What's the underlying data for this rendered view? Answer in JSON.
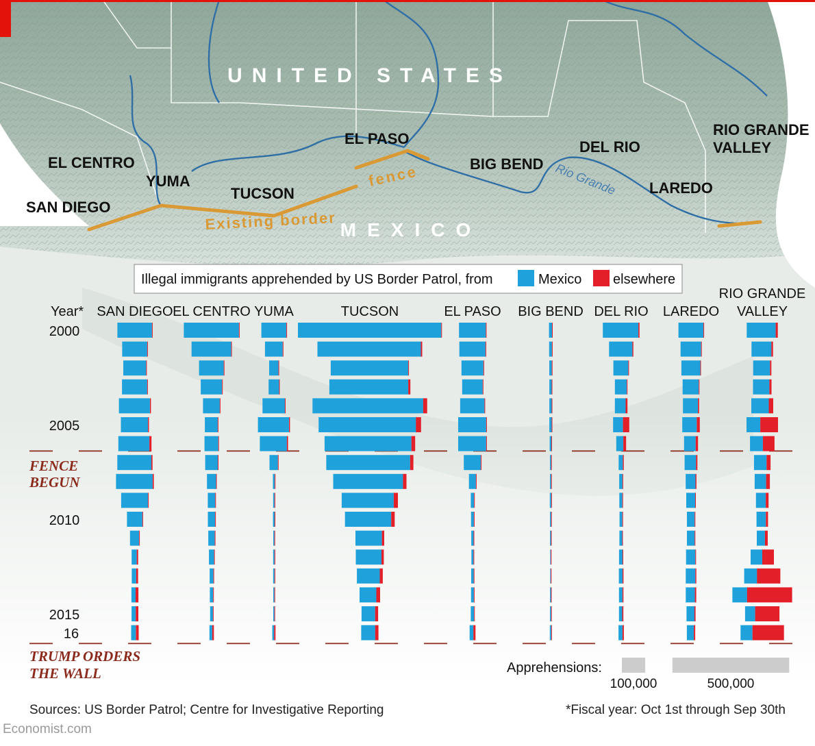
{
  "map": {
    "country_us": "UNITED STATES",
    "country_mx": "MEXICO",
    "fence_label_1": "Existing border",
    "fence_label_2": "fence",
    "river_label": "Rio Grande",
    "sectors": [
      "SAN DIEGO",
      "EL CENTRO",
      "YUMA",
      "TUCSON",
      "EL PASO",
      "BIG BEND",
      "DEL RIO",
      "LAREDO",
      "RIO GRANDE",
      "VALLEY"
    ]
  },
  "legend": {
    "title": "Illegal immigrants apprehended by US Border Patrol, from",
    "mexico_label": "Mexico",
    "elsewhere_label": "elsewhere"
  },
  "colors": {
    "mexico": "#1fa2dc",
    "elsewhere": "#e3202a",
    "annotation": "#8b2a1b",
    "fence": "#d99a35",
    "accent": "#e3120b",
    "scale": "#cccccc"
  },
  "year_header": "Year*",
  "annotations": {
    "fence_1": "FENCE",
    "fence_2": "BEGUN",
    "trump_1": "TRUMP ORDERS",
    "trump_2": "THE WALL"
  },
  "scale": {
    "label": "Apprehensions:",
    "small_label": "100,000",
    "large_label": "500,000",
    "small_value": 100000,
    "large_value": 500000
  },
  "footer": {
    "sources": "Sources: US Border Patrol; Centre for Investigative Reporting",
    "note": "*Fiscal year: Oct 1st through Sep 30th",
    "brand": "Economist.com"
  },
  "chart_data": {
    "type": "bar",
    "title": "Illegal immigrants apprehended by US Border Patrol, from Mexico / elsewhere",
    "years": [
      2000,
      2001,
      2002,
      2003,
      2004,
      2005,
      2006,
      2007,
      2008,
      2009,
      2010,
      2011,
      2012,
      2013,
      2014,
      2015,
      2016
    ],
    "year_tick_labels": [
      "2000",
      "",
      "",
      "",
      "",
      "2005",
      "",
      "",
      "",
      "",
      "2010",
      "",
      "",
      "",
      "",
      "2015",
      "16"
    ],
    "series_names": [
      "Mexico",
      "elsewhere"
    ],
    "sectors": [
      {
        "name": "SAN DIEGO",
        "label_lines": [
          "SAN DIEGO"
        ],
        "mexico": [
          148000,
          107000,
          98000,
          108000,
          133000,
          116000,
          133000,
          146000,
          157000,
          115000,
          66000,
          39000,
          22000,
          19000,
          18000,
          18000,
          20000
        ],
        "elsewhere": [
          2000,
          2000,
          2000,
          3000,
          4000,
          4000,
          9000,
          5000,
          5000,
          3000,
          2000,
          3000,
          6000,
          8000,
          12000,
          11000,
          12000
        ]
      },
      {
        "name": "EL CENTRO",
        "label_lines": [
          "EL CENTRO"
        ],
        "mexico": [
          236000,
          170000,
          106000,
          91000,
          72000,
          55000,
          59000,
          54000,
          39000,
          32000,
          31000,
          28000,
          22000,
          16000,
          14000,
          12000,
          12000
        ],
        "elsewhere": [
          2000,
          2000,
          2000,
          2000,
          2000,
          3000,
          2000,
          1000,
          1000,
          1000,
          1000,
          1000,
          1000,
          1000,
          1000,
          1000,
          7000
        ]
      },
      {
        "name": "YUMA",
        "label_lines": [
          "YUMA"
        ],
        "mexico": [
          107000,
          76000,
          40000,
          45000,
          96000,
          133000,
          116000,
          36000,
          8000,
          6000,
          7000,
          5000,
          6000,
          6000,
          5000,
          5000,
          8000
        ],
        "elsewhere": [
          1000,
          1000,
          1000,
          1000,
          2000,
          4000,
          5000,
          2000,
          1000,
          1000,
          1000,
          1000,
          1000,
          1000,
          1000,
          1000,
          6000
        ]
      },
      {
        "name": "TUCSON",
        "label_lines": [
          "TUCSON"
        ],
        "mexico": [
          614000,
          443000,
          332000,
          338000,
          474000,
          417000,
          372000,
          359000,
          299000,
          223000,
          198000,
          113000,
          110000,
          98000,
          72000,
          58000,
          60000
        ],
        "elsewhere": [
          2000,
          6000,
          3000,
          9000,
          17000,
          22000,
          16000,
          14000,
          15000,
          18000,
          15000,
          10000,
          10000,
          13000,
          16000,
          13000,
          14000
        ]
      },
      {
        "name": "EL PASO",
        "label_lines": [
          "EL PASO"
        ],
        "mexico": [
          115000,
          112000,
          94000,
          88000,
          104000,
          120000,
          120000,
          73000,
          30000,
          14000,
          12000,
          10000,
          9000,
          11000,
          12000,
          14000,
          16000
        ],
        "elsewhere": [
          1000,
          1000,
          1000,
          1000,
          2000,
          3000,
          3000,
          2000,
          1000,
          1000,
          1000,
          1000,
          1000,
          1000,
          1000,
          1000,
          9000
        ]
      },
      {
        "name": "BIG BEND",
        "label_lines": [
          "BIG BEND"
        ],
        "mexico": [
          13000,
          12000,
          11000,
          10000,
          10000,
          10000,
          7000,
          5000,
          5000,
          6000,
          5000,
          4000,
          3000,
          3000,
          4000,
          5000,
          6000
        ],
        "elsewhere": [
          1000,
          1000,
          1000,
          1000,
          1000,
          1000,
          1000,
          1000,
          1000,
          1000,
          1000,
          1000,
          1000,
          1000,
          1000,
          1000,
          1000
        ]
      },
      {
        "name": "DEL RIO",
        "label_lines": [
          "DEL RIO"
        ],
        "mexico": [
          152000,
          100000,
          64000,
          51000,
          46000,
          42000,
          30000,
          18000,
          14000,
          13000,
          12000,
          12000,
          15000,
          16000,
          15000,
          14000,
          17000
        ],
        "elsewhere": [
          5000,
          4000,
          3000,
          3000,
          8000,
          27000,
          12000,
          4000,
          3000,
          3000,
          2000,
          3000,
          3000,
          4000,
          4000,
          5000,
          6000
        ]
      },
      {
        "name": "LAREDO",
        "label_lines": [
          "LAREDO"
        ],
        "mexico": [
          107000,
          88000,
          81000,
          69000,
          64000,
          62000,
          50000,
          49000,
          42000,
          38000,
          33000,
          33000,
          40000,
          41000,
          39000,
          34000,
          30000
        ],
        "elsewhere": [
          1000,
          2000,
          2000,
          3000,
          5000,
          13000,
          10000,
          6000,
          4000,
          3000,
          2000,
          2000,
          3000,
          4000,
          6000,
          5000,
          6000
        ]
      },
      {
        "name": "RIO GRANDE VALLEY",
        "label_lines": [
          "RIO GRANDE",
          "VALLEY"
        ],
        "mexico": [
          124000,
          85000,
          72000,
          70000,
          75000,
          59000,
          55000,
          54000,
          49000,
          42000,
          40000,
          35000,
          50000,
          55000,
          63000,
          43000,
          51000
        ],
        "elsewhere": [
          9000,
          7000,
          6000,
          9000,
          19000,
          76000,
          50000,
          17000,
          16000,
          12000,
          9000,
          12000,
          50000,
          100000,
          193000,
          104000,
          135000
        ]
      }
    ]
  }
}
